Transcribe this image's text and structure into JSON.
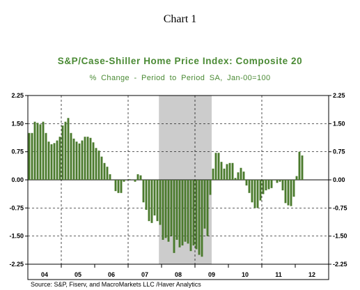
{
  "heading": "Chart 1",
  "chart_data": {
    "type": "bar",
    "title": "S&P/Case-Shiller Home Price Index: Composite 20",
    "subtitle": "% Change - Period to Period     SA, Jan-00=100",
    "source": "Source:  S&P, Fiserv, and MacroMarkets LLC /Haver Analytics",
    "frequency": "monthly",
    "start": "2004-01",
    "ylim": [
      -2.25,
      2.25
    ],
    "yticks": [
      "2.25",
      "1.50",
      "0.75",
      "0.00",
      "-0.75",
      "-1.50",
      "-2.25"
    ],
    "xticks": [
      "04",
      "05",
      "06",
      "07",
      "08",
      "09",
      "10",
      "11",
      "12"
    ],
    "xlim": [
      2004,
      2013
    ],
    "grid": true,
    "recession_shading": {
      "from": 2007.92,
      "to": 2009.5
    },
    "values": [
      1.25,
      1.25,
      1.55,
      1.52,
      1.48,
      1.55,
      1.25,
      1.02,
      0.95,
      0.98,
      1.05,
      1.15,
      1.45,
      1.55,
      1.65,
      1.25,
      1.1,
      1.02,
      0.97,
      1.05,
      1.15,
      1.15,
      1.12,
      1.0,
      0.85,
      0.78,
      0.62,
      0.45,
      0.35,
      0.15,
      0.0,
      -0.3,
      -0.35,
      -0.35,
      -0.05,
      0.0,
      0.02,
      0.0,
      -0.05,
      0.15,
      0.12,
      -0.6,
      -0.8,
      -1.1,
      -1.15,
      -0.95,
      -1.1,
      -1.2,
      -1.6,
      -1.55,
      -1.65,
      -1.5,
      -1.95,
      -1.6,
      -1.8,
      -1.75,
      -1.65,
      -1.7,
      -1.9,
      -1.75,
      -1.85,
      -2.0,
      -2.05,
      -1.3,
      -1.5,
      -0.4,
      0.3,
      0.72,
      0.72,
      0.48,
      0.3,
      0.42,
      0.45,
      0.45,
      0.05,
      0.2,
      0.32,
      0.22,
      -0.15,
      -0.35,
      -0.6,
      -0.75,
      -0.75,
      -0.55,
      -0.38,
      -0.28,
      -0.25,
      -0.22,
      0.0,
      -0.08,
      -0.05,
      -0.28,
      -0.62,
      -0.68,
      -0.7,
      -0.45,
      0.1,
      0.75,
      0.65
    ],
    "bar_color": "#4a7a2c",
    "shade_color": "#cccccc"
  }
}
